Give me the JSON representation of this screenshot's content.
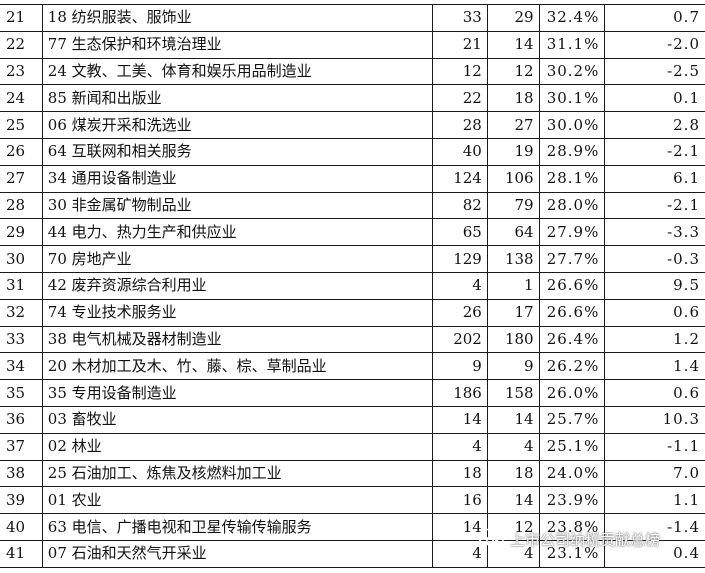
{
  "rows": [
    {
      "idx": "21",
      "name": "18 纺织服装、服饰业",
      "a": "33",
      "b": "29",
      "pct": "32.4%",
      "chg": "0.7"
    },
    {
      "idx": "22",
      "name": "77 生态保护和环境治理业",
      "a": "21",
      "b": "14",
      "pct": "31.1%",
      "chg": "-2.0"
    },
    {
      "idx": "23",
      "name": "24 文教、工美、体育和娱乐用品制造业",
      "a": "12",
      "b": "12",
      "pct": "30.2%",
      "chg": "-2.5"
    },
    {
      "idx": "24",
      "name": "85 新闻和出版业",
      "a": "22",
      "b": "18",
      "pct": "30.1%",
      "chg": "0.1"
    },
    {
      "idx": "25",
      "name": "06 煤炭开采和洗选业",
      "a": "28",
      "b": "27",
      "pct": "30.0%",
      "chg": "2.8"
    },
    {
      "idx": "26",
      "name": "64 互联网和相关服务",
      "a": "40",
      "b": "19",
      "pct": "28.9%",
      "chg": "-2.1"
    },
    {
      "idx": "27",
      "name": "34 通用设备制造业",
      "a": "124",
      "b": "106",
      "pct": "28.1%",
      "chg": "6.1"
    },
    {
      "idx": "28",
      "name": "30 非金属矿物制品业",
      "a": "82",
      "b": "79",
      "pct": "28.0%",
      "chg": "-2.1"
    },
    {
      "idx": "29",
      "name": "44 电力、热力生产和供应业",
      "a": "65",
      "b": "64",
      "pct": "27.9%",
      "chg": "-3.3"
    },
    {
      "idx": "30",
      "name": "70 房地产业",
      "a": "129",
      "b": "138",
      "pct": "27.7%",
      "chg": "-0.3"
    },
    {
      "idx": "31",
      "name": "42 废弃资源综合利用业",
      "a": "4",
      "b": "1",
      "pct": "26.6%",
      "chg": "9.5"
    },
    {
      "idx": "32",
      "name": "74 专业技术服务业",
      "a": "26",
      "b": "17",
      "pct": "26.6%",
      "chg": "0.6"
    },
    {
      "idx": "33",
      "name": "38 电气机械及器材制造业",
      "a": "202",
      "b": "180",
      "pct": "26.4%",
      "chg": "1.2"
    },
    {
      "idx": "34",
      "name": "20 木材加工及木、竹、藤、棕、草制品业",
      "a": "9",
      "b": "9",
      "pct": "26.2%",
      "chg": "1.4"
    },
    {
      "idx": "35",
      "name": "35 专用设备制造业",
      "a": "186",
      "b": "158",
      "pct": "26.0%",
      "chg": "0.6"
    },
    {
      "idx": "36",
      "name": "03 畜牧业",
      "a": "14",
      "b": "14",
      "pct": "25.7%",
      "chg": "10.3"
    },
    {
      "idx": "37",
      "name": "02 林业",
      "a": "4",
      "b": "4",
      "pct": "25.1%",
      "chg": "-1.1"
    },
    {
      "idx": "38",
      "name": "25 石油加工、炼焦及核燃料加工业",
      "a": "18",
      "b": "18",
      "pct": "24.0%",
      "chg": "7.0"
    },
    {
      "idx": "39",
      "name": "01 农业",
      "a": "16",
      "b": "14",
      "pct": "23.9%",
      "chg": "1.1"
    },
    {
      "idx": "40",
      "name": "63 电信、广播电视和卫星传输传输服务",
      "a": "14",
      "b": "12",
      "pct": "23.8%",
      "chg": "-1.4"
    },
    {
      "idx": "41",
      "name": "07 石油和天然气开采业",
      "a": "4",
      "b": "4",
      "pct": "23.1%",
      "chg": "0.4"
    }
  ],
  "watermark": {
    "text": "上市公司纳税贡献总榜",
    "icon": "wechat-icon"
  }
}
